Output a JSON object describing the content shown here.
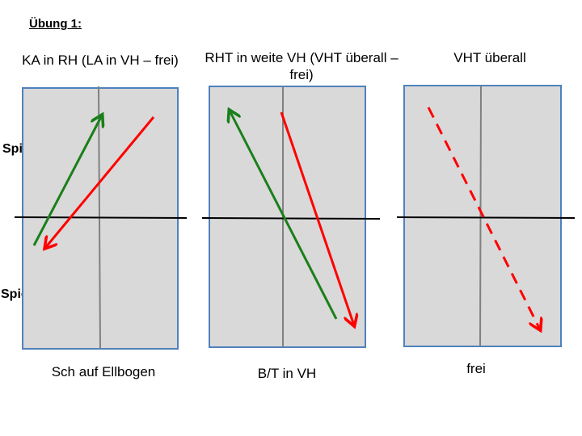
{
  "exercise": {
    "title": "Übung 1:"
  },
  "players": {
    "a": "Spieler A",
    "b": "Spieler B"
  },
  "colors": {
    "court_fill": "#d9d9d9",
    "court_border": "#4f81bd",
    "center_line": "#808080",
    "net": "#000000",
    "green_arrow": "#1a7f1a",
    "red_arrow": "#ff0000"
  },
  "panels": [
    {
      "title": "KA in RH (LA in VH – frei)",
      "caption": "Sch auf Ellbogen"
    },
    {
      "title": "RHT in weite VH (VHT überall – frei)",
      "caption": "B/T in VH"
    },
    {
      "title": "VHT überall",
      "caption": "frei"
    }
  ]
}
